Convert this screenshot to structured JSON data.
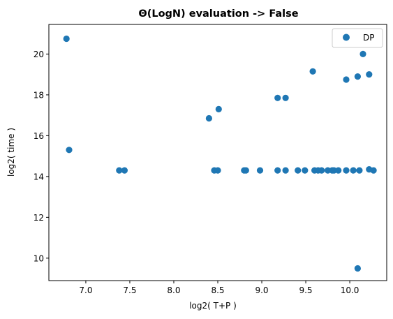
{
  "chart_data": {
    "type": "scatter",
    "title": "Θ(LogN) evaluation -> False",
    "xlabel": "log2( T+P )",
    "ylabel": "log2( time )",
    "xlim": [
      6.58,
      10.42
    ],
    "ylim": [
      8.9,
      21.45
    ],
    "xticks": [
      7.0,
      7.5,
      8.0,
      8.5,
      9.0,
      9.5,
      10.0
    ],
    "xtick_labels": [
      "7.0",
      "7.5",
      "8.0",
      "8.5",
      "9.0",
      "9.5",
      "10.0"
    ],
    "yticks": [
      10,
      12,
      14,
      16,
      18,
      20
    ],
    "ytick_labels": [
      "10",
      "12",
      "14",
      "16",
      "18",
      "20"
    ],
    "grid": false,
    "legend_position": "top-right",
    "series": [
      {
        "name": "DP",
        "color": "#1f77b4",
        "x": [
          6.78,
          6.81,
          7.38,
          7.44,
          8.4,
          8.46,
          8.5,
          8.51,
          8.8,
          8.82,
          8.98,
          9.18,
          9.18,
          9.27,
          9.27,
          9.41,
          9.49,
          9.58,
          9.6,
          9.64,
          9.68,
          9.75,
          9.8,
          9.82,
          9.87,
          9.96,
          9.96,
          10.04,
          10.09,
          10.09,
          10.11,
          10.15,
          10.22,
          10.22,
          10.27
        ],
        "y": [
          20.75,
          15.3,
          14.3,
          14.3,
          16.85,
          14.3,
          14.3,
          17.3,
          14.3,
          14.3,
          14.3,
          17.85,
          14.3,
          17.85,
          14.3,
          14.3,
          14.3,
          19.15,
          14.3,
          14.3,
          14.3,
          14.3,
          14.3,
          14.3,
          14.3,
          18.75,
          14.3,
          14.3,
          9.5,
          18.9,
          14.3,
          20.0,
          19.0,
          14.35,
          14.3
        ]
      }
    ]
  }
}
